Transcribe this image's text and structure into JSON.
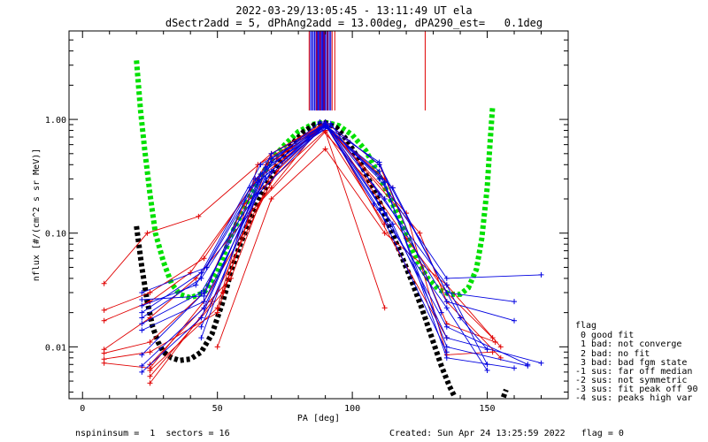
{
  "chart_data": {
    "type": "scatter",
    "title": "2022-03-29/13:05:45 - 13:11:49 UT ela",
    "subtitle": "dSectr2add = 5, dPhAng2add = 13.00deg, dPA290_est=   0.1deg",
    "xlabel": "PA [deg]",
    "ylabel": "nflux [#/(cm^2 s sr MeV)]",
    "xlim": [
      -5,
      180
    ],
    "ylim": [
      0.0035,
      6.0
    ],
    "yscale": "log",
    "xticks": [
      0,
      50,
      100,
      150
    ],
    "xtick_labels": [
      "0",
      "50",
      "100",
      "150"
    ],
    "yticks": [
      0.01,
      0.1,
      1.0
    ],
    "ytick_labels": [
      "0.01",
      "0.10",
      "1.00"
    ],
    "colors": {
      "red": "#e00000",
      "blue": "#0000e0",
      "green": "#00e000",
      "black": "#000000"
    },
    "legend": {
      "position": "right-outside",
      "title": "flag",
      "entries": [
        " 0 good fit",
        " 1 bad: not converge",
        " 2 bad: no fit",
        " 3 bad: bad fgm state",
        "-1 sus: far off median",
        "-2 sus: not symmetric",
        "-3 sus: fit peak off 90",
        "-4 sus: peaks high var"
      ]
    },
    "series": [
      {
        "color": "red",
        "x": [
          8,
          24,
          43,
          70,
          90
        ],
        "y": [
          0.036,
          0.1,
          0.14,
          0.5,
          0.92
        ]
      },
      {
        "color": "red",
        "x": [
          8,
          25,
          45,
          68,
          90,
          112
        ],
        "y": [
          0.021,
          0.03,
          0.06,
          0.4,
          0.9,
          0.3
        ]
      },
      {
        "color": "red",
        "x": [
          8,
          25,
          40,
          65,
          90,
          115
        ],
        "y": [
          0.017,
          0.025,
          0.045,
          0.3,
          0.88,
          0.25
        ]
      },
      {
        "color": "red",
        "x": [
          8,
          25,
          42,
          70,
          88,
          112
        ],
        "y": [
          0.0095,
          0.018,
          0.04,
          0.25,
          0.85,
          0.2
        ]
      },
      {
        "color": "red",
        "x": [
          8,
          25,
          45,
          60,
          90,
          112
        ],
        "y": [
          0.0088,
          0.011,
          0.03,
          0.18,
          0.8,
          0.12
        ]
      },
      {
        "color": "red",
        "x": [
          8,
          25,
          50,
          62,
          90,
          112
        ],
        "y": [
          0.0078,
          0.009,
          0.02,
          0.15,
          0.78,
          0.022
        ]
      },
      {
        "color": "red",
        "x": [
          8,
          25,
          45,
          75,
          90,
          135
        ],
        "y": [
          0.0072,
          0.0065,
          0.025,
          0.45,
          0.95,
          0.012
        ]
      },
      {
        "color": "red",
        "x": [
          25,
          52,
          70,
          90,
          110,
          135,
          153
        ],
        "y": [
          0.0055,
          0.03,
          0.5,
          0.95,
          0.4,
          0.016,
          0.011
        ]
      },
      {
        "color": "red",
        "x": [
          25,
          48,
          72,
          90,
          120,
          135,
          152
        ],
        "y": [
          0.0048,
          0.025,
          0.35,
          0.9,
          0.15,
          0.0085,
          0.009
        ]
      },
      {
        "color": "red",
        "x": [
          25,
          50,
          65,
          90,
          125,
          135,
          155
        ],
        "y": [
          0.0062,
          0.022,
          0.4,
          0.9,
          0.1,
          0.025,
          0.008
        ]
      },
      {
        "color": "red",
        "x": [
          25,
          55,
          72,
          90,
          120,
          135,
          152
        ],
        "y": [
          0.007,
          0.04,
          0.45,
          0.92,
          0.09,
          0.03,
          0.012
        ]
      },
      {
        "color": "red",
        "x": [
          50,
          70,
          90,
          112,
          135,
          155
        ],
        "y": [
          0.01,
          0.2,
          0.55,
          0.1,
          0.035,
          0.01
        ]
      },
      {
        "color": "blue",
        "x": [
          22,
          45,
          65,
          90,
          110,
          135,
          170
        ],
        "y": [
          0.014,
          0.025,
          0.22,
          0.9,
          0.3,
          0.04,
          0.043
        ]
      },
      {
        "color": "blue",
        "x": [
          22,
          44,
          68,
          90,
          115,
          135,
          160
        ],
        "y": [
          0.016,
          0.03,
          0.3,
          0.88,
          0.25,
          0.03,
          0.025
        ]
      },
      {
        "color": "blue",
        "x": [
          22,
          44,
          70,
          90,
          112,
          135,
          160
        ],
        "y": [
          0.018,
          0.04,
          0.35,
          0.92,
          0.2,
          0.025,
          0.017
        ]
      },
      {
        "color": "blue",
        "x": [
          22,
          44,
          66,
          90,
          112,
          135,
          165
        ],
        "y": [
          0.02,
          0.045,
          0.4,
          0.9,
          0.15,
          0.015,
          0.007
        ]
      },
      {
        "color": "blue",
        "x": [
          22,
          42,
          64,
          90,
          115,
          135,
          170
        ],
        "y": [
          0.023,
          0.035,
          0.3,
          0.95,
          0.12,
          0.012,
          0.0072
        ]
      },
      {
        "color": "blue",
        "x": [
          22,
          45,
          62,
          90,
          110,
          135,
          165
        ],
        "y": [
          0.026,
          0.028,
          0.25,
          0.85,
          0.35,
          0.01,
          0.0068
        ]
      },
      {
        "color": "blue",
        "x": [
          22,
          46,
          66,
          90,
          112,
          135,
          160
        ],
        "y": [
          0.03,
          0.05,
          0.33,
          0.9,
          0.28,
          0.008,
          0.0065
        ]
      },
      {
        "color": "blue",
        "x": [
          22,
          45,
          70,
          90,
          108,
          135,
          150
        ],
        "y": [
          0.0085,
          0.03,
          0.5,
          0.9,
          0.18,
          0.022,
          0.0062
        ]
      },
      {
        "color": "blue",
        "x": [
          22,
          45,
          70,
          92,
          110,
          135,
          150
        ],
        "y": [
          0.0068,
          0.022,
          0.45,
          0.92,
          0.22,
          0.035,
          0.007
        ]
      },
      {
        "color": "blue",
        "x": [
          22,
          44,
          68,
          92,
          110,
          140,
          150
        ],
        "y": [
          0.006,
          0.018,
          0.38,
          0.88,
          0.4,
          0.018,
          0.0095
        ]
      },
      {
        "color": "blue",
        "x": [
          44,
          65,
          90,
          110,
          135
        ],
        "y": [
          0.012,
          0.28,
          0.9,
          0.16,
          0.009
        ]
      },
      {
        "color": "blue",
        "x": [
          44,
          70,
          88,
          110,
          133
        ],
        "y": [
          0.015,
          0.42,
          0.95,
          0.42,
          0.02
        ]
      }
    ],
    "fit_curves": [
      {
        "color": "green",
        "x": [
          20,
          21.5,
          23,
          25,
          27,
          30,
          33,
          36,
          40,
          45,
          50,
          55,
          60,
          65,
          70,
          75,
          80,
          85,
          88,
          90,
          92,
          95,
          100,
          105,
          110,
          115,
          120,
          125,
          128,
          132,
          136,
          140,
          143,
          146,
          148,
          150,
          151,
          152
        ],
        "y": [
          3.3,
          1.2,
          0.55,
          0.22,
          0.1,
          0.056,
          0.036,
          0.029,
          0.027,
          0.03,
          0.045,
          0.095,
          0.17,
          0.29,
          0.44,
          0.6,
          0.78,
          0.9,
          0.93,
          0.94,
          0.92,
          0.88,
          0.73,
          0.53,
          0.32,
          0.18,
          0.095,
          0.052,
          0.04,
          0.032,
          0.029,
          0.029,
          0.033,
          0.048,
          0.09,
          0.25,
          0.6,
          1.3
        ]
      },
      {
        "color": "black",
        "x": [
          20,
          22,
          24,
          26,
          28,
          30,
          33,
          36,
          40,
          44,
          48,
          52,
          55,
          58,
          62,
          66,
          70,
          74,
          78,
          82,
          86,
          90,
          94,
          98,
          102,
          106,
          110,
          114,
          118,
          122,
          126,
          130,
          133,
          136,
          138
        ],
        "y": [
          0.115,
          0.05,
          0.025,
          0.015,
          0.011,
          0.009,
          0.008,
          0.0076,
          0.0078,
          0.009,
          0.013,
          0.025,
          0.045,
          0.075,
          0.13,
          0.21,
          0.32,
          0.46,
          0.62,
          0.78,
          0.9,
          0.93,
          0.85,
          0.66,
          0.46,
          0.3,
          0.19,
          0.11,
          0.065,
          0.038,
          0.021,
          0.011,
          0.0068,
          0.0045,
          0.0036
        ]
      },
      {
        "color": "black",
        "x": [
          156,
          157
        ],
        "y": [
          0.0036,
          0.0042
        ]
      }
    ],
    "vertical_lines": {
      "from_y": 1.2,
      "to_y": 6.0,
      "blue_x": [
        84.5,
        85,
        85.5,
        86,
        86.5,
        87,
        87.3,
        87.7,
        88,
        88.3,
        88.7,
        89,
        89.3,
        89.7,
        90,
        90.5,
        91,
        91.5,
        92
      ],
      "red_x": [
        84,
        86.8,
        88.1,
        89.5,
        90.8,
        92.5,
        93.5,
        127
      ]
    }
  },
  "footer": {
    "left": "nspininsum =  1  sectors = 16",
    "right": "Created: Sun Apr 24 13:25:59 2022   flag = 0"
  }
}
